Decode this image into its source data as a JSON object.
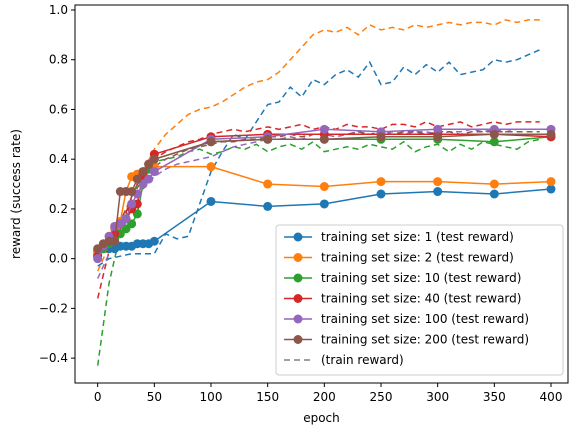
{
  "chart_data": {
    "type": "line",
    "xlabel": "epoch",
    "ylabel": "reward (success rate)",
    "xlim": [
      -20,
      415
    ],
    "ylim": [
      -0.5,
      1.02
    ],
    "xticks": [
      0,
      50,
      100,
      150,
      200,
      250,
      300,
      350,
      400
    ],
    "xtick_labels": [
      "0",
      "50",
      "100",
      "150",
      "200",
      "250",
      "300",
      "350",
      "400"
    ],
    "yticks": [
      -0.4,
      -0.2,
      0.0,
      0.2,
      0.4,
      0.6,
      0.8,
      1.0
    ],
    "ytick_labels": [
      "−0.4",
      "−0.2",
      "0.0",
      "0.2",
      "0.4",
      "0.6",
      "0.8",
      "1.0"
    ],
    "grid": false,
    "legend_position": "lower-right",
    "legend_train_label": "(train reward)",
    "series": [
      {
        "name": "training set size: 1 (test reward)",
        "color": "#1f77b4",
        "x": [
          0,
          5,
          10,
          15,
          20,
          25,
          30,
          35,
          40,
          45,
          50,
          100,
          150,
          200,
          250,
          300,
          350,
          400
        ],
        "y": [
          0.03,
          0.04,
          0.04,
          0.04,
          0.05,
          0.05,
          0.05,
          0.06,
          0.06,
          0.06,
          0.07,
          0.23,
          0.21,
          0.22,
          0.26,
          0.27,
          0.26,
          0.28
        ],
        "train_x": [
          0,
          10,
          20,
          30,
          40,
          50,
          60,
          70,
          80,
          90,
          100,
          110,
          120,
          130,
          140,
          150,
          160,
          170,
          180,
          190,
          200,
          210,
          220,
          230,
          240,
          250,
          260,
          270,
          280,
          290,
          300,
          310,
          320,
          330,
          340,
          350,
          360,
          370,
          380,
          390
        ],
        "train_y": [
          -0.03,
          0.0,
          0.01,
          0.02,
          0.02,
          0.02,
          0.1,
          0.08,
          0.09,
          0.22,
          0.35,
          0.43,
          0.5,
          0.48,
          0.55,
          0.62,
          0.63,
          0.69,
          0.65,
          0.72,
          0.7,
          0.74,
          0.76,
          0.73,
          0.79,
          0.7,
          0.71,
          0.77,
          0.74,
          0.78,
          0.75,
          0.79,
          0.74,
          0.75,
          0.76,
          0.8,
          0.79,
          0.8,
          0.82,
          0.84
        ]
      },
      {
        "name": "training set size: 2 (test reward)",
        "color": "#ff7f0e",
        "x": [
          0,
          5,
          10,
          15,
          20,
          25,
          30,
          35,
          40,
          45,
          50,
          100,
          150,
          200,
          250,
          300,
          350,
          400
        ],
        "y": [
          0.02,
          0.05,
          0.07,
          0.12,
          0.15,
          0.27,
          0.33,
          0.34,
          0.35,
          0.36,
          0.37,
          0.37,
          0.3,
          0.29,
          0.31,
          0.31,
          0.3,
          0.31
        ],
        "train_x": [
          0,
          10,
          20,
          30,
          40,
          50,
          60,
          70,
          80,
          90,
          100,
          110,
          120,
          130,
          140,
          150,
          160,
          170,
          180,
          190,
          200,
          210,
          220,
          230,
          240,
          250,
          260,
          270,
          280,
          290,
          300,
          310,
          320,
          330,
          340,
          350,
          360,
          370,
          380,
          390
        ],
        "train_y": [
          -0.05,
          0.05,
          0.15,
          0.25,
          0.35,
          0.44,
          0.5,
          0.54,
          0.58,
          0.6,
          0.61,
          0.63,
          0.66,
          0.69,
          0.71,
          0.72,
          0.75,
          0.8,
          0.85,
          0.9,
          0.92,
          0.91,
          0.93,
          0.9,
          0.94,
          0.92,
          0.93,
          0.92,
          0.94,
          0.93,
          0.94,
          0.95,
          0.94,
          0.95,
          0.95,
          0.94,
          0.96,
          0.95,
          0.96,
          0.96
        ]
      },
      {
        "name": "training set size: 10 (test reward)",
        "color": "#2ca02c",
        "x": [
          0,
          5,
          10,
          15,
          20,
          25,
          30,
          35,
          40,
          45,
          50,
          100,
          150,
          200,
          250,
          300,
          350,
          400
        ],
        "y": [
          0.01,
          0.04,
          0.06,
          0.08,
          0.1,
          0.12,
          0.14,
          0.18,
          0.3,
          0.36,
          0.4,
          0.47,
          0.48,
          0.48,
          0.48,
          0.48,
          0.47,
          0.49
        ],
        "train_x": [
          0,
          10,
          20,
          30,
          40,
          50,
          60,
          70,
          80,
          90,
          100,
          110,
          120,
          130,
          140,
          150,
          160,
          170,
          180,
          190,
          200,
          210,
          220,
          230,
          240,
          250,
          260,
          270,
          280,
          290,
          300,
          310,
          320,
          330,
          340,
          350,
          360,
          370,
          380,
          390
        ],
        "train_y": [
          -0.43,
          -0.1,
          0.1,
          0.25,
          0.35,
          0.39,
          0.4,
          0.41,
          0.43,
          0.44,
          0.42,
          0.43,
          0.45,
          0.44,
          0.46,
          0.43,
          0.45,
          0.46,
          0.44,
          0.47,
          0.43,
          0.44,
          0.45,
          0.44,
          0.46,
          0.45,
          0.44,
          0.47,
          0.43,
          0.45,
          0.46,
          0.43,
          0.46,
          0.44,
          0.47,
          0.46,
          0.45,
          0.44,
          0.47,
          0.48
        ]
      },
      {
        "name": "training set size: 40 (test reward)",
        "color": "#d62728",
        "x": [
          0,
          5,
          10,
          15,
          20,
          25,
          30,
          35,
          40,
          45,
          50,
          100,
          150,
          200,
          250,
          300,
          350,
          400
        ],
        "y": [
          0.01,
          0.05,
          0.07,
          0.1,
          0.14,
          0.16,
          0.2,
          0.22,
          0.34,
          0.38,
          0.42,
          0.49,
          0.5,
          0.5,
          0.5,
          0.5,
          0.5,
          0.49
        ],
        "train_x": [
          0,
          10,
          20,
          30,
          40,
          50,
          60,
          70,
          80,
          90,
          100,
          110,
          120,
          130,
          140,
          150,
          160,
          170,
          180,
          190,
          200,
          210,
          220,
          230,
          240,
          250,
          260,
          270,
          280,
          290,
          300,
          310,
          320,
          330,
          340,
          350,
          360,
          370,
          380,
          390
        ],
        "train_y": [
          -0.16,
          0.03,
          0.12,
          0.25,
          0.35,
          0.4,
          0.43,
          0.45,
          0.47,
          0.48,
          0.5,
          0.51,
          0.52,
          0.51,
          0.52,
          0.53,
          0.52,
          0.53,
          0.54,
          0.52,
          0.53,
          0.52,
          0.54,
          0.53,
          0.53,
          0.52,
          0.54,
          0.54,
          0.53,
          0.55,
          0.53,
          0.54,
          0.55,
          0.53,
          0.54,
          0.55,
          0.54,
          0.55,
          0.55,
          0.55
        ]
      },
      {
        "name": "training set size: 100 (test reward)",
        "color": "#9467bd",
        "x": [
          0,
          5,
          10,
          15,
          20,
          25,
          30,
          35,
          40,
          45,
          50,
          100,
          150,
          200,
          250,
          300,
          350,
          400
        ],
        "y": [
          0.0,
          0.05,
          0.09,
          0.13,
          0.14,
          0.16,
          0.22,
          0.26,
          0.3,
          0.32,
          0.35,
          0.48,
          0.49,
          0.52,
          0.51,
          0.52,
          0.52,
          0.52
        ],
        "train_x": [
          0,
          10,
          20,
          30,
          40,
          50,
          60,
          70,
          80,
          90,
          100,
          110,
          120,
          130,
          140,
          150,
          160,
          170,
          180,
          190,
          200,
          210,
          220,
          230,
          240,
          250,
          260,
          270,
          280,
          290,
          300,
          310,
          320,
          330,
          340,
          350,
          360,
          370,
          380,
          390
        ],
        "train_y": [
          -0.08,
          0.02,
          0.1,
          0.2,
          0.28,
          0.33,
          0.36,
          0.38,
          0.39,
          0.4,
          0.41,
          0.43,
          0.45,
          0.46,
          0.47,
          0.48,
          0.48,
          0.49,
          0.48,
          0.5,
          0.5,
          0.49,
          0.5,
          0.51,
          0.5,
          0.5,
          0.51,
          0.5,
          0.51,
          0.51,
          0.5,
          0.51,
          0.51,
          0.52,
          0.51,
          0.52,
          0.51,
          0.52,
          0.52,
          0.52
        ]
      },
      {
        "name": "training set size: 200 (test reward)",
        "color": "#8c564b",
        "x": [
          0,
          5,
          10,
          15,
          20,
          25,
          30,
          35,
          40,
          45,
          50,
          100,
          150,
          200,
          250,
          300,
          350,
          400
        ],
        "y": [
          0.04,
          0.06,
          0.07,
          0.07,
          0.27,
          0.27,
          0.27,
          0.32,
          0.35,
          0.38,
          0.4,
          0.47,
          0.48,
          0.48,
          0.49,
          0.49,
          0.5,
          0.5
        ],
        "train_x": [
          0,
          10,
          20,
          30,
          40,
          50,
          60,
          70,
          80,
          90,
          100,
          110,
          120,
          130,
          140,
          150,
          160,
          170,
          180,
          190,
          200,
          210,
          220,
          230,
          240,
          250,
          260,
          270,
          280,
          290,
          300,
          310,
          320,
          330,
          340,
          350,
          360,
          370,
          380,
          390
        ],
        "train_y": [
          0.0,
          0.06,
          0.15,
          0.25,
          0.32,
          0.37,
          0.4,
          0.42,
          0.44,
          0.45,
          0.46,
          0.47,
          0.47,
          0.48,
          0.48,
          0.49,
          0.49,
          0.5,
          0.49,
          0.5,
          0.5,
          0.5,
          0.5,
          0.51,
          0.5,
          0.51,
          0.5,
          0.51,
          0.51,
          0.5,
          0.51,
          0.51,
          0.5,
          0.51,
          0.51,
          0.51,
          0.51,
          0.51,
          0.51,
          0.51
        ]
      }
    ]
  }
}
